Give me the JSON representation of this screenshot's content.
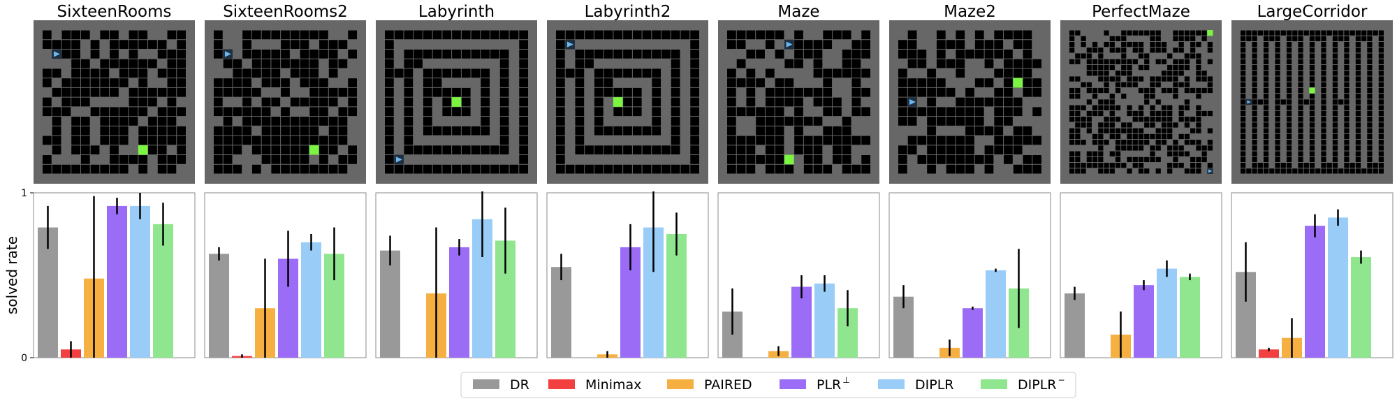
{
  "chart_data": {
    "type": "bar",
    "ylabel": "solved rate",
    "ylim": [
      0,
      1
    ],
    "yticks": [
      "0",
      "1"
    ],
    "series": [
      {
        "name": "DR",
        "color": "#999999"
      },
      {
        "name": "Minimax",
        "color": "#f24040"
      },
      {
        "name": "PAIRED",
        "color": "#f5b041"
      },
      {
        "name": "PLR",
        "superscript": "⊥",
        "color": "#9b6cf5"
      },
      {
        "name": "DIPLR",
        "color": "#99cdf8"
      },
      {
        "name": "DIPLR",
        "superscript": "−",
        "color": "#90e68e"
      }
    ],
    "panels": [
      {
        "title": "SixteenRooms",
        "maze": "sixteen",
        "values": [
          0.79,
          0.05,
          0.48,
          0.92,
          0.92,
          0.81
        ],
        "errors": [
          0.13,
          0.05,
          0.5,
          0.05,
          0.08,
          0.13
        ]
      },
      {
        "title": "SixteenRooms2",
        "maze": "sixteen2",
        "values": [
          0.63,
          0.01,
          0.3,
          0.6,
          0.7,
          0.63
        ],
        "errors": [
          0.04,
          0.01,
          0.3,
          0.17,
          0.05,
          0.16
        ]
      },
      {
        "title": "Labyrinth",
        "maze": "labyrinth",
        "values": [
          0.65,
          0.0,
          0.39,
          0.67,
          0.84,
          0.71
        ],
        "errors": [
          0.09,
          0.0,
          0.4,
          0.05,
          0.23,
          0.2
        ]
      },
      {
        "title": "Labyrinth2",
        "maze": "labyrinth2",
        "values": [
          0.55,
          0.0,
          0.02,
          0.67,
          0.79,
          0.75
        ],
        "errors": [
          0.08,
          0.0,
          0.02,
          0.14,
          0.27,
          0.13
        ]
      },
      {
        "title": "Maze",
        "maze": "maze",
        "values": [
          0.28,
          0.0,
          0.04,
          0.43,
          0.45,
          0.3
        ],
        "errors": [
          0.14,
          0.0,
          0.03,
          0.07,
          0.05,
          0.11
        ]
      },
      {
        "title": "Maze2",
        "maze": "maze2",
        "values": [
          0.37,
          0.0,
          0.06,
          0.3,
          0.53,
          0.42
        ],
        "errors": [
          0.07,
          0.0,
          0.05,
          0.01,
          0.01,
          0.24
        ]
      },
      {
        "title": "PerfectMaze",
        "maze": "perfect",
        "values": [
          0.39,
          0.0,
          0.14,
          0.44,
          0.54,
          0.49
        ],
        "errors": [
          0.04,
          0.0,
          0.14,
          0.03,
          0.05,
          0.02
        ]
      },
      {
        "title": "LargeCorridor",
        "maze": "corridor",
        "values": [
          0.52,
          0.05,
          0.12,
          0.8,
          0.85,
          0.61
        ],
        "errors": [
          0.18,
          0.01,
          0.12,
          0.07,
          0.05,
          0.04
        ]
      }
    ],
    "legend_position": "bottom-center",
    "grid": false
  },
  "colors": {
    "maze_background": "#676767",
    "wall": "#000000",
    "path": "#1f2f40",
    "agent": "#6ab8f0",
    "goal": "#7cf542"
  }
}
